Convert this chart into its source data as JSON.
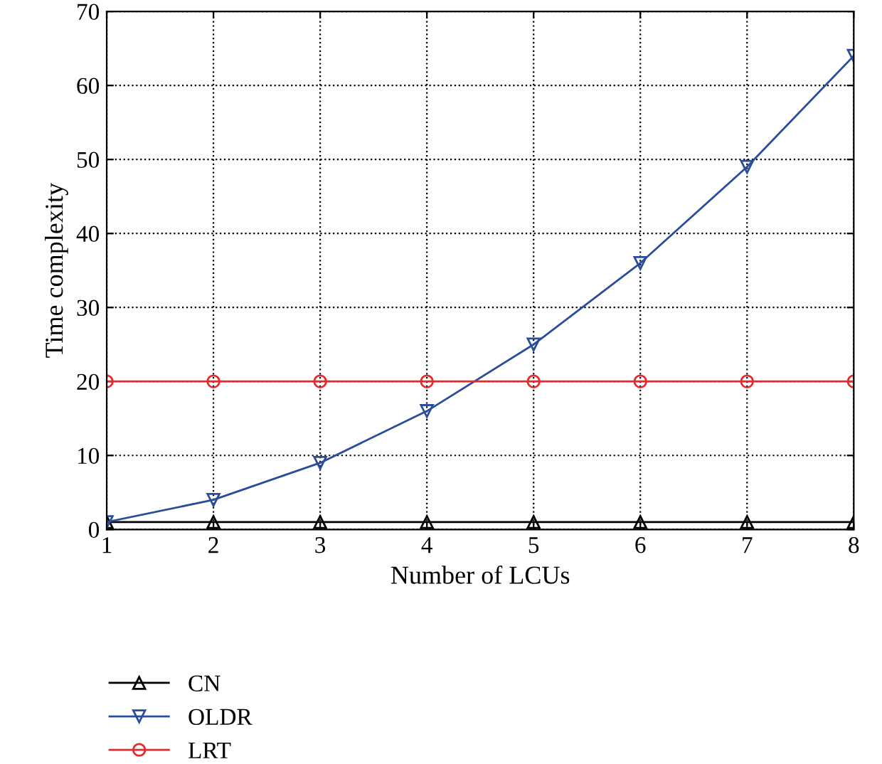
{
  "chart_data": {
    "type": "line",
    "xlabel": "Number of LCUs",
    "ylabel": "Time complexity",
    "x": [
      1,
      2,
      3,
      4,
      5,
      6,
      7,
      8
    ],
    "series": [
      {
        "name": "CN",
        "color": "#000000",
        "marker": "triangle",
        "values": [
          1,
          1,
          1,
          1,
          1,
          1,
          1,
          1
        ]
      },
      {
        "name": "OLDR",
        "color": "#2a4d9b",
        "marker": "triangle_down",
        "values": [
          1,
          4,
          9,
          16,
          25,
          36,
          49,
          64
        ]
      },
      {
        "name": "LRT",
        "color": "#e8282b",
        "marker": "circle",
        "values": [
          20,
          20,
          20,
          20,
          20,
          20,
          20,
          20
        ]
      }
    ],
    "xlim": [
      1,
      8
    ],
    "xticks": [
      1,
      2,
      3,
      4,
      5,
      6,
      7,
      8
    ],
    "ylim": [
      0,
      70
    ],
    "yticks": [
      0,
      10,
      20,
      30,
      40,
      50,
      60,
      70
    ],
    "grid": true,
    "legend": "bottom",
    "line_style": "solid"
  }
}
